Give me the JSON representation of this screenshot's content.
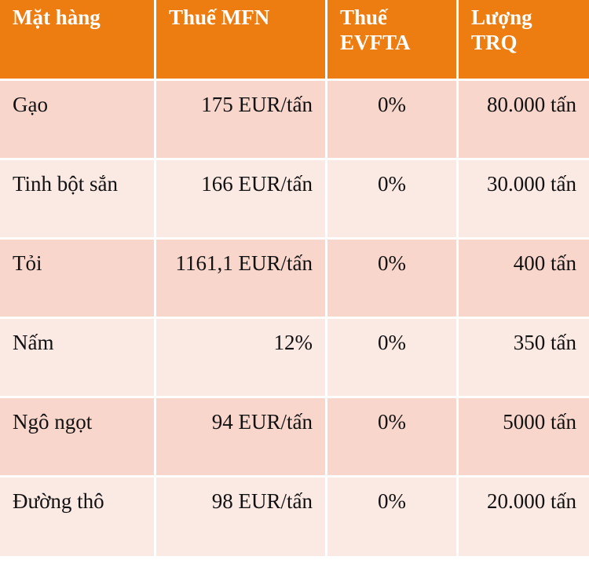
{
  "table": {
    "headers": [
      "Mặt hàng",
      "Thuế MFN",
      "Thuế\nEVFTA",
      "Lượng\nTRQ"
    ],
    "header_lines": [
      [
        "Mặt hàng"
      ],
      [
        "Thuế MFN"
      ],
      [
        "Thuế",
        "EVFTA"
      ],
      [
        "Lượng",
        "TRQ"
      ]
    ],
    "rows": [
      [
        "Gạo",
        "175 EUR/tấn",
        "0%",
        "80.000 tấn"
      ],
      [
        "Tinh bột sắn",
        "166 EUR/tấn",
        "0%",
        "30.000 tấn"
      ],
      [
        "Tỏi",
        "1161,1 EUR/tấn",
        "0%",
        "400 tấn"
      ],
      [
        "Nấm",
        "12%",
        "0%",
        "350 tấn"
      ],
      [
        "Ngô ngọt",
        "94 EUR/tấn",
        "0%",
        "5000 tấn"
      ],
      [
        "Đường thô",
        "98 EUR/tấn",
        "0%",
        "20.000 tấn"
      ]
    ]
  },
  "colors": {
    "header_bg": "#ee7d11",
    "header_text": "#ffffff",
    "row_odd_bg": "#f8d6cc",
    "row_even_bg": "#fbe9e4",
    "border": "#ffffff"
  }
}
